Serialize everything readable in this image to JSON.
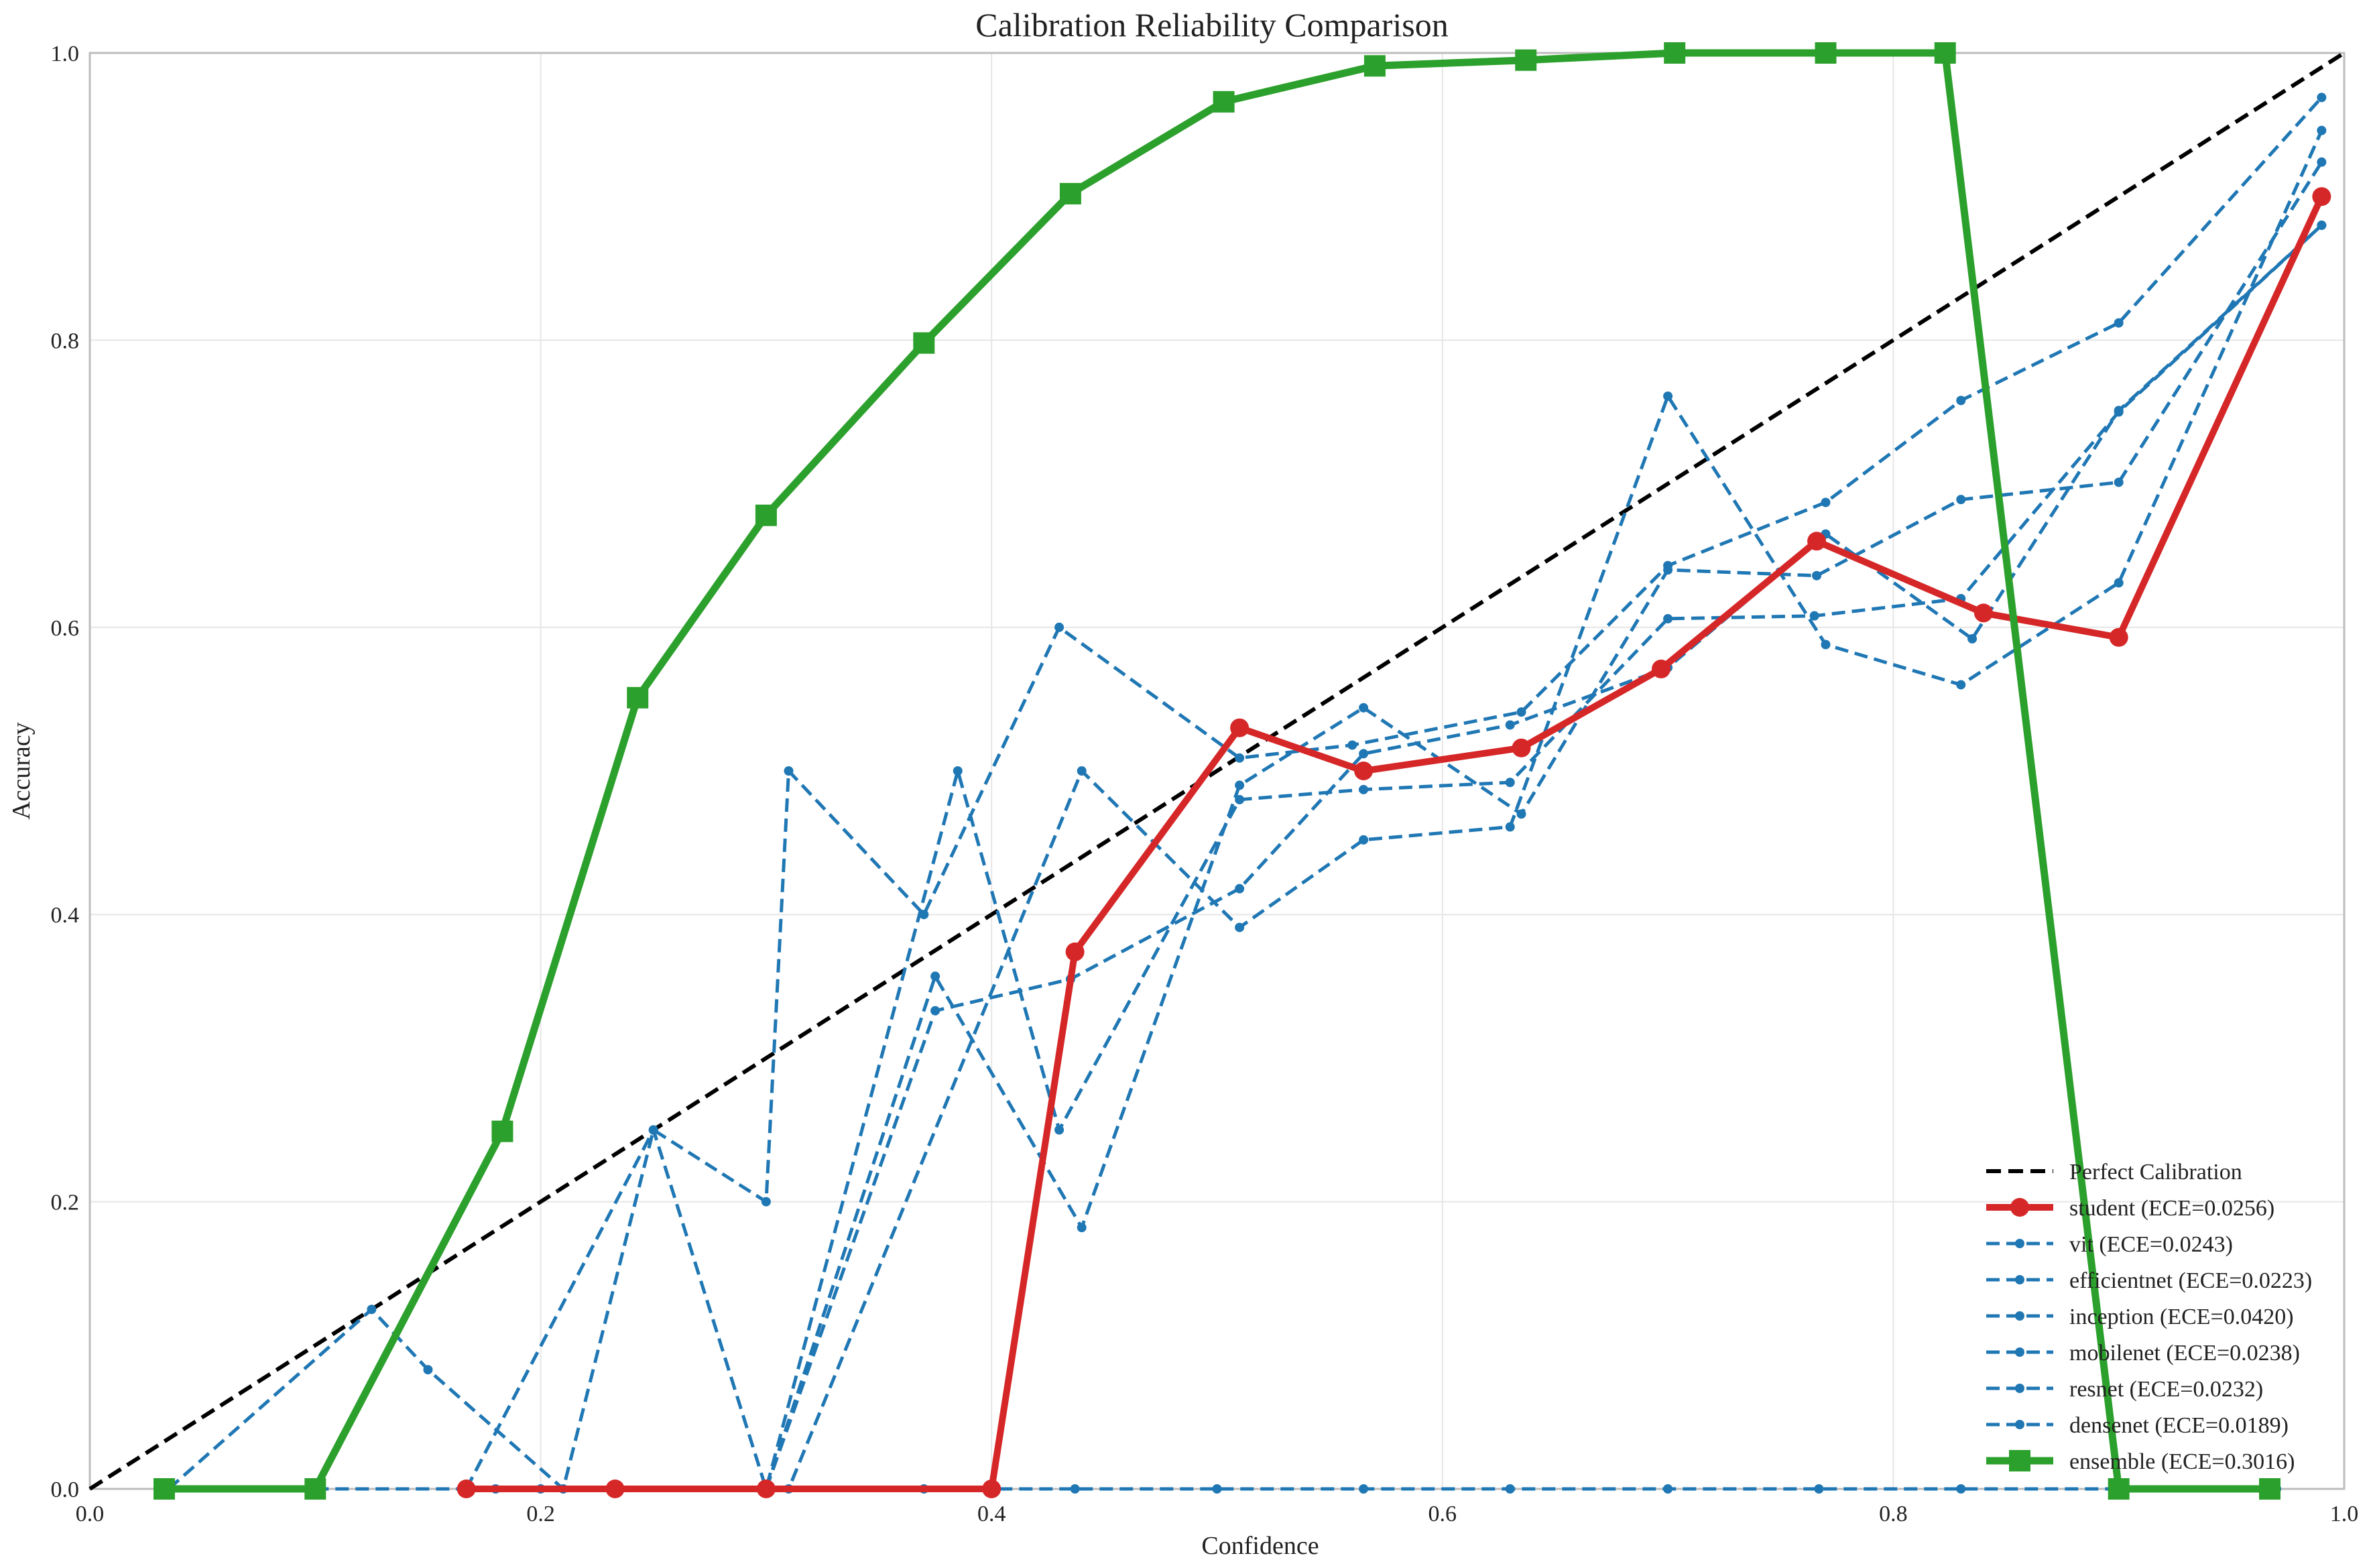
{
  "chart_data": {
    "type": "line",
    "title": "Calibration Reliability Comparison",
    "xlabel": "Confidence",
    "ylabel": "Accuracy",
    "xlim": [
      0,
      1
    ],
    "ylim": [
      0,
      1
    ],
    "xticks": [
      "0.0",
      "0.2",
      "0.4",
      "0.6",
      "0.8",
      "1.0"
    ],
    "yticks": [
      "0.0",
      "0.2",
      "0.4",
      "0.6",
      "0.8",
      "1.0"
    ],
    "grid": true,
    "legend_position": "bottom-right",
    "reference": {
      "name": "Perfect Calibration",
      "x": [
        0,
        1
      ],
      "y": [
        0,
        1
      ],
      "color": "#000000"
    },
    "series": [
      {
        "name": "student (ECE=0.0256)",
        "color": "#d62728",
        "style": "solid",
        "marker": "circle",
        "x": [
          0.167,
          0.233,
          0.3,
          0.4,
          0.437,
          0.51,
          0.565,
          0.635,
          0.697,
          0.766,
          0.84,
          0.9,
          0.99
        ],
        "y": [
          0.0,
          0.0,
          0.0,
          0.0,
          0.374,
          0.53,
          0.5,
          0.516,
          0.571,
          0.66,
          0.61,
          0.593,
          0.9
        ]
      },
      {
        "name": "vit (ECE=0.0243)",
        "color": "#1f77b4",
        "style": "dashed",
        "marker": "dot",
        "x": [
          0.035,
          0.125,
          0.15,
          0.21,
          0.25,
          0.3,
          0.31,
          0.37,
          0.43,
          0.51,
          0.56,
          0.635,
          0.7,
          0.77,
          0.83,
          0.9,
          0.99
        ],
        "y": [
          0.0,
          0.125,
          0.083,
          0.0,
          0.25,
          0.2,
          0.5,
          0.4,
          0.6,
          0.509,
          0.518,
          0.541,
          0.643,
          0.687,
          0.758,
          0.812,
          0.969
        ]
      },
      {
        "name": "efficientnet (ECE=0.0223)",
        "color": "#1f77b4",
        "style": "dashed",
        "marker": "dot",
        "x": [
          0.167,
          0.25,
          0.3,
          0.385,
          0.43,
          0.51,
          0.565,
          0.63,
          0.7,
          0.765,
          0.83,
          0.9,
          0.99
        ],
        "y": [
          0.0,
          0.25,
          0.0,
          0.5,
          0.25,
          0.48,
          0.487,
          0.492,
          0.606,
          0.608,
          0.62,
          0.75,
          0.88
        ]
      },
      {
        "name": "inception (ECE=0.0420)",
        "color": "#1f77b4",
        "style": "dashed",
        "marker": "dot",
        "x": [
          0.18,
          0.3,
          0.31,
          0.44,
          0.51,
          0.565,
          0.63,
          0.7,
          0.77,
          0.83,
          0.9,
          0.99
        ],
        "y": [
          0.0,
          0.0,
          0.0,
          0.5,
          0.391,
          0.452,
          0.461,
          0.761,
          0.588,
          0.56,
          0.631,
          0.946
        ]
      },
      {
        "name": "mobilenet (ECE=0.0238)",
        "color": "#1f77b4",
        "style": "dashed",
        "marker": "dot",
        "x": [
          0.3,
          0.375,
          0.44,
          0.51,
          0.565,
          0.635,
          0.7,
          0.766,
          0.83,
          0.9,
          0.99
        ],
        "y": [
          0.0,
          0.357,
          0.182,
          0.49,
          0.544,
          0.47,
          0.64,
          0.636,
          0.689,
          0.701,
          0.924
        ]
      },
      {
        "name": "resnet (ECE=0.0232)",
        "color": "#1f77b4",
        "style": "dashed",
        "marker": "dot",
        "x": [
          0.3,
          0.375,
          0.435,
          0.51,
          0.565,
          0.63,
          0.7,
          0.77,
          0.835,
          0.9,
          0.99
        ],
        "y": [
          0.0,
          0.333,
          0.355,
          0.418,
          0.512,
          0.532,
          0.572,
          0.665,
          0.592,
          0.751,
          0.88
        ]
      },
      {
        "name": "densenet (ECE=0.0189)",
        "color": "#1f77b4",
        "style": "dashed",
        "marker": "dot",
        "x": [
          0.1,
          0.2,
          0.3,
          0.37,
          0.437,
          0.5,
          0.565,
          0.63,
          0.7,
          0.767,
          0.83,
          0.9,
          0.97
        ],
        "y": [
          0.0,
          0.0,
          0.0,
          0.0,
          0.0,
          0.0,
          0.0,
          0.0,
          0.0,
          0.0,
          0.0,
          0.0,
          0.0
        ]
      },
      {
        "name": "ensemble (ECE=0.3016)",
        "color": "#2ca02c",
        "style": "solid",
        "marker": "square",
        "x": [
          0.033,
          0.1,
          0.183,
          0.243,
          0.3,
          0.37,
          0.435,
          0.503,
          0.57,
          0.637,
          0.703,
          0.77,
          0.823,
          0.9,
          0.967
        ],
        "y": [
          0.0,
          0.0,
          0.249,
          0.551,
          0.678,
          0.798,
          0.902,
          0.966,
          0.991,
          0.995,
          1.0,
          1.0,
          1.0,
          0.0,
          0.0
        ]
      }
    ]
  }
}
